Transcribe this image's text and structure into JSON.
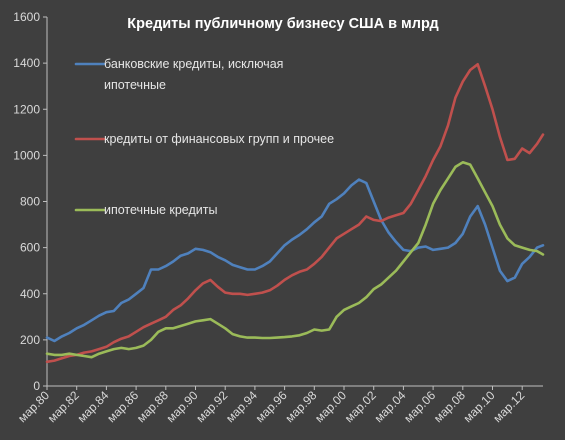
{
  "chart_data": {
    "type": "line",
    "title": "Кредиты публичному бизнесу США в млрд",
    "xlabel": "",
    "ylabel": "",
    "ylim": [
      0,
      1600
    ],
    "yticks": [
      0,
      200,
      400,
      600,
      800,
      1000,
      1200,
      1400,
      1600
    ],
    "xlim": [
      1980,
      2013.4
    ],
    "xtick_labels": [
      "мар.80",
      "мар.82",
      "мар.84",
      "мар.86",
      "мар.88",
      "мар.90",
      "мар.92",
      "мар.94",
      "мар.96",
      "мар.98",
      "мар.00",
      "мар.02",
      "мар.04",
      "мар.06",
      "мар.08",
      "мар.10",
      "мар.12"
    ],
    "grid": false,
    "legend": "inside-left",
    "background": "#3f3f3f",
    "series": [
      {
        "name": "банковские кредиты, исключая ипотечные",
        "color": "#4f81bd",
        "legend_line": 1,
        "points": [
          [
            1980.0,
            210
          ],
          [
            1980.5,
            195
          ],
          [
            1981.0,
            215
          ],
          [
            1981.5,
            230
          ],
          [
            1982.0,
            250
          ],
          [
            1982.5,
            265
          ],
          [
            1983.0,
            285
          ],
          [
            1983.5,
            305
          ],
          [
            1984.0,
            320
          ],
          [
            1984.5,
            325
          ],
          [
            1985.0,
            360
          ],
          [
            1985.5,
            375
          ],
          [
            1986.0,
            400
          ],
          [
            1986.5,
            425
          ],
          [
            1987.0,
            505
          ],
          [
            1987.5,
            505
          ],
          [
            1988.0,
            520
          ],
          [
            1988.5,
            540
          ],
          [
            1989.0,
            565
          ],
          [
            1989.5,
            575
          ],
          [
            1990.0,
            595
          ],
          [
            1990.5,
            590
          ],
          [
            1991.0,
            580
          ],
          [
            1991.5,
            560
          ],
          [
            1992.0,
            545
          ],
          [
            1992.5,
            525
          ],
          [
            1993.0,
            515
          ],
          [
            1993.5,
            505
          ],
          [
            1994.0,
            505
          ],
          [
            1994.5,
            520
          ],
          [
            1995.0,
            540
          ],
          [
            1995.5,
            575
          ],
          [
            1996.0,
            610
          ],
          [
            1996.5,
            635
          ],
          [
            1997.0,
            655
          ],
          [
            1997.5,
            680
          ],
          [
            1998.0,
            710
          ],
          [
            1998.5,
            735
          ],
          [
            1999.0,
            790
          ],
          [
            1999.5,
            810
          ],
          [
            2000.0,
            835
          ],
          [
            2000.5,
            870
          ],
          [
            2001.0,
            895
          ],
          [
            2001.5,
            880
          ],
          [
            2002.0,
            800
          ],
          [
            2002.5,
            720
          ],
          [
            2003.0,
            665
          ],
          [
            2003.5,
            625
          ],
          [
            2004.0,
            590
          ],
          [
            2004.5,
            585
          ],
          [
            2005.0,
            600
          ],
          [
            2005.5,
            605
          ],
          [
            2006.0,
            590
          ],
          [
            2006.5,
            595
          ],
          [
            2007.0,
            600
          ],
          [
            2007.5,
            620
          ],
          [
            2008.0,
            660
          ],
          [
            2008.5,
            735
          ],
          [
            2009.0,
            780
          ],
          [
            2009.5,
            700
          ],
          [
            2010.0,
            600
          ],
          [
            2010.5,
            500
          ],
          [
            2011.0,
            455
          ],
          [
            2011.5,
            470
          ],
          [
            2012.0,
            530
          ],
          [
            2012.5,
            560
          ],
          [
            2013.0,
            600
          ],
          [
            2013.4,
            610
          ]
        ]
      },
      {
        "name": "кредиты от финансовых групп и прочее",
        "color": "#c0504d",
        "legend_line": 1,
        "points": [
          [
            1980.0,
            105
          ],
          [
            1980.5,
            110
          ],
          [
            1981.0,
            120
          ],
          [
            1981.5,
            130
          ],
          [
            1982.0,
            135
          ],
          [
            1982.5,
            145
          ],
          [
            1983.0,
            150
          ],
          [
            1983.5,
            160
          ],
          [
            1984.0,
            170
          ],
          [
            1984.5,
            190
          ],
          [
            1985.0,
            205
          ],
          [
            1985.5,
            215
          ],
          [
            1986.0,
            235
          ],
          [
            1986.5,
            255
          ],
          [
            1987.0,
            270
          ],
          [
            1987.5,
            285
          ],
          [
            1988.0,
            300
          ],
          [
            1988.5,
            330
          ],
          [
            1989.0,
            350
          ],
          [
            1989.5,
            380
          ],
          [
            1990.0,
            415
          ],
          [
            1990.5,
            445
          ],
          [
            1991.0,
            460
          ],
          [
            1991.5,
            430
          ],
          [
            1992.0,
            405
          ],
          [
            1992.5,
            400
          ],
          [
            1993.0,
            400
          ],
          [
            1993.5,
            395
          ],
          [
            1994.0,
            400
          ],
          [
            1994.5,
            405
          ],
          [
            1995.0,
            415
          ],
          [
            1995.5,
            435
          ],
          [
            1996.0,
            460
          ],
          [
            1996.5,
            480
          ],
          [
            1997.0,
            495
          ],
          [
            1997.5,
            505
          ],
          [
            1998.0,
            530
          ],
          [
            1998.5,
            560
          ],
          [
            1999.0,
            600
          ],
          [
            1999.5,
            640
          ],
          [
            2000.0,
            660
          ],
          [
            2000.5,
            680
          ],
          [
            2001.0,
            700
          ],
          [
            2001.5,
            735
          ],
          [
            2002.0,
            720
          ],
          [
            2002.5,
            715
          ],
          [
            2003.0,
            730
          ],
          [
            2003.5,
            740
          ],
          [
            2004.0,
            750
          ],
          [
            2004.5,
            790
          ],
          [
            2005.0,
            850
          ],
          [
            2005.5,
            910
          ],
          [
            2006.0,
            980
          ],
          [
            2006.5,
            1040
          ],
          [
            2007.0,
            1130
          ],
          [
            2007.5,
            1250
          ],
          [
            2008.0,
            1320
          ],
          [
            2008.5,
            1370
          ],
          [
            2009.0,
            1395
          ],
          [
            2009.5,
            1300
          ],
          [
            2010.0,
            1200
          ],
          [
            2010.5,
            1080
          ],
          [
            2011.0,
            980
          ],
          [
            2011.5,
            985
          ],
          [
            2012.0,
            1030
          ],
          [
            2012.5,
            1010
          ],
          [
            2013.0,
            1050
          ],
          [
            2013.4,
            1090
          ]
        ]
      },
      {
        "name": "ипотечные кредиты",
        "color": "#9bbb59",
        "legend_line": 1,
        "points": [
          [
            1980.0,
            140
          ],
          [
            1980.5,
            135
          ],
          [
            1981.0,
            135
          ],
          [
            1981.5,
            140
          ],
          [
            1982.0,
            135
          ],
          [
            1982.5,
            130
          ],
          [
            1983.0,
            125
          ],
          [
            1983.5,
            140
          ],
          [
            1984.0,
            150
          ],
          [
            1984.5,
            160
          ],
          [
            1985.0,
            165
          ],
          [
            1985.5,
            160
          ],
          [
            1986.0,
            165
          ],
          [
            1986.5,
            175
          ],
          [
            1987.0,
            200
          ],
          [
            1987.5,
            235
          ],
          [
            1988.0,
            250
          ],
          [
            1988.5,
            250
          ],
          [
            1989.0,
            260
          ],
          [
            1989.5,
            270
          ],
          [
            1990.0,
            280
          ],
          [
            1990.5,
            285
          ],
          [
            1991.0,
            290
          ],
          [
            1991.5,
            270
          ],
          [
            1992.0,
            250
          ],
          [
            1992.5,
            225
          ],
          [
            1993.0,
            215
          ],
          [
            1993.5,
            210
          ],
          [
            1994.0,
            210
          ],
          [
            1994.5,
            208
          ],
          [
            1995.0,
            208
          ],
          [
            1995.5,
            210
          ],
          [
            1996.0,
            212
          ],
          [
            1996.5,
            215
          ],
          [
            1997.0,
            220
          ],
          [
            1997.5,
            230
          ],
          [
            1998.0,
            245
          ],
          [
            1998.5,
            240
          ],
          [
            1999.0,
            245
          ],
          [
            1999.5,
            300
          ],
          [
            2000.0,
            330
          ],
          [
            2000.5,
            345
          ],
          [
            2001.0,
            360
          ],
          [
            2001.5,
            385
          ],
          [
            2002.0,
            420
          ],
          [
            2002.5,
            440
          ],
          [
            2003.0,
            470
          ],
          [
            2003.5,
            500
          ],
          [
            2004.0,
            540
          ],
          [
            2004.5,
            580
          ],
          [
            2005.0,
            620
          ],
          [
            2005.5,
            700
          ],
          [
            2006.0,
            790
          ],
          [
            2006.5,
            850
          ],
          [
            2007.0,
            900
          ],
          [
            2007.5,
            950
          ],
          [
            2008.0,
            970
          ],
          [
            2008.5,
            960
          ],
          [
            2009.0,
            900
          ],
          [
            2009.5,
            840
          ],
          [
            2010.0,
            780
          ],
          [
            2010.5,
            700
          ],
          [
            2011.0,
            640
          ],
          [
            2011.5,
            610
          ],
          [
            2012.0,
            600
          ],
          [
            2012.5,
            590
          ],
          [
            2013.0,
            585
          ],
          [
            2013.4,
            570
          ]
        ]
      }
    ],
    "legend_labels": [
      {
        "series": 0,
        "lines": [
          "банковские кредиты, исключая",
          "ипотечные"
        ]
      },
      {
        "series": 1,
        "lines": [
          "кредиты от финансовых групп и прочее"
        ]
      },
      {
        "series": 2,
        "lines": [
          "ипотечные кредиты"
        ]
      }
    ]
  }
}
